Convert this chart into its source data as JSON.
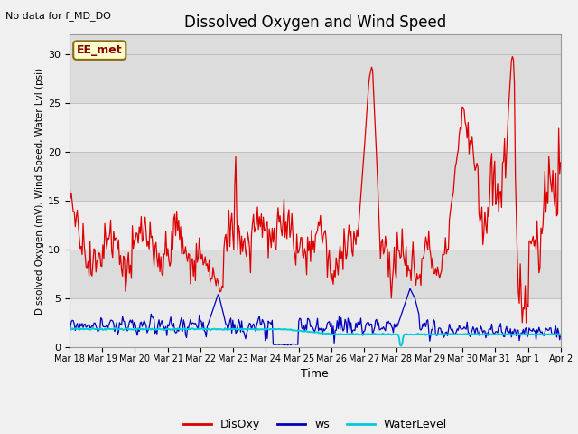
{
  "title": "Dissolved Oxygen and Wind Speed",
  "top_left_note": "No data for f_MD_DO",
  "annotation_box": "EE_met",
  "xlabel": "Time",
  "ylabel": "Dissolved Oxygen (mV), Wind Speed, Water Lvl (psi)",
  "ylim": [
    0,
    32
  ],
  "yticks": [
    0,
    5,
    10,
    15,
    20,
    25,
    30
  ],
  "plot_bg_color": "#dcdcdc",
  "fig_bg_color": "#f0f0f0",
  "line_colors": {
    "DisOxy": "#dd0000",
    "ws": "#0000bb",
    "WaterLevel": "#00ccdd"
  },
  "legend_labels": [
    "DisOxy",
    "ws",
    "WaterLevel"
  ],
  "n_points": 500,
  "x_tick_labels": [
    "Mar 18",
    "Mar 19",
    "Mar 20",
    "Mar 21",
    "Mar 22",
    "Mar 23",
    "Mar 24",
    "Mar 25",
    "Mar 26",
    "Mar 27",
    "Mar 28",
    "Mar 29",
    "Mar 30",
    "Mar 31",
    "Apr 1",
    "Apr 2"
  ]
}
